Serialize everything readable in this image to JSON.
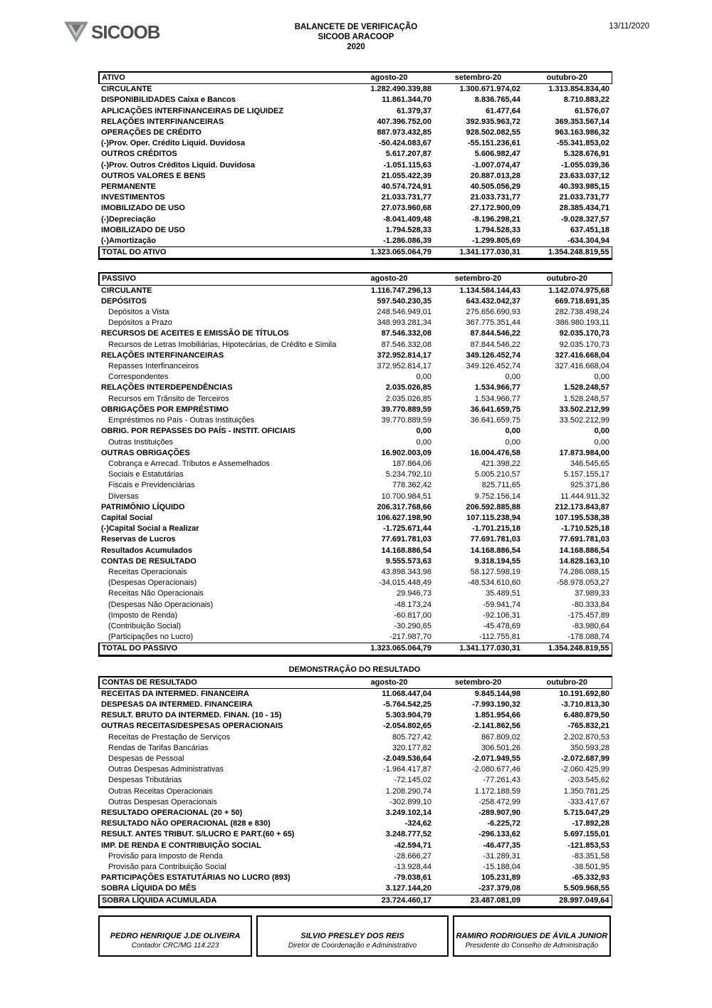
{
  "header": {
    "logo_word": "SICOOB",
    "title_lines": [
      "BALANCETE DE VERIFICAÇÃO",
      "SICOOB ARACOOP",
      "2020"
    ],
    "date": "13/11/2020"
  },
  "columns": [
    "agosto-20",
    "setembro-20",
    "outubro-20"
  ],
  "tables": [
    {
      "id": "ativo",
      "header_label": "ATIVO",
      "rows": [
        {
          "label": "CIRCULANTE",
          "values": [
            "1.282.490.339,88",
            "1.300.671.974,02",
            "1.313.854.834,40"
          ],
          "style": "bold"
        },
        {
          "label": "DISPONIBILIDADES Caixa e Bancos",
          "values": [
            "11.861.344,70",
            "8.836.765,44",
            "8.710.883,22"
          ],
          "style": "bold"
        },
        {
          "label": "APLICAÇÕES INTERFINANCEIRAS DE LIQUIDEZ",
          "values": [
            "61.379,37",
            "61.477,64",
            "61.576,07"
          ],
          "style": "bold"
        },
        {
          "label": "RELAÇÕES INTERFINANCEIRAS",
          "values": [
            "407.396.752,00",
            "392.935.963,72",
            "369.353.567,14"
          ],
          "style": "bold"
        },
        {
          "label": "OPERAÇÕES DE CRÉDITO",
          "values": [
            "887.973.432,85",
            "928.502.082,55",
            "963.163.986,32"
          ],
          "style": "bold"
        },
        {
          "label": "(-)Prov. Oper. Crédito Liquid. Duvidosa",
          "values": [
            "-50.424.083,67",
            "-55.151.236,61",
            "-55.341.853,02"
          ],
          "style": "bold"
        },
        {
          "label": "OUTROS CRÉDITOS",
          "values": [
            "5.617.207,87",
            "5.606.982,47",
            "5.328.676,91"
          ],
          "style": "bold"
        },
        {
          "label": "(-)Prov. Outros Créditos Liquid. Duvidosa",
          "values": [
            "-1.051.115,63",
            "-1.007.074,47",
            "-1.055.039,36"
          ],
          "style": "bold"
        },
        {
          "label": "OUTROS VALORES E BENS",
          "values": [
            "21.055.422,39",
            "20.887.013,28",
            "23.633.037,12"
          ],
          "style": "bold"
        },
        {
          "label": "PERMANENTE",
          "values": [
            "40.574.724,91",
            "40.505.056,29",
            "40.393.985,15"
          ],
          "style": "bold"
        },
        {
          "label": "INVESTIMENTOS",
          "values": [
            "21.033.731,77",
            "21.033.731,77",
            "21.033.731,77"
          ],
          "style": "bold"
        },
        {
          "label": "IMOBILIZADO DE USO",
          "values": [
            "27.073.960,68",
            "27.172.900,09",
            "28.385.434,71"
          ],
          "style": "bold"
        },
        {
          "label": "(-)Depreciação",
          "values": [
            "-8.041.409,48",
            "-8.196.298,21",
            "-9.028.327,57"
          ],
          "style": "bold"
        },
        {
          "label": "IMOBILIZADO DE USO",
          "values": [
            "1.794.528,33",
            "1.794.528,33",
            "637.451,18"
          ],
          "style": "bold"
        },
        {
          "label": "(-)Amortização",
          "values": [
            "-1.286.086,39",
            "-1.299.805,69",
            "-634.304,94"
          ],
          "style": "bold"
        }
      ],
      "total": {
        "label": "TOTAL DO ATIVO",
        "values": [
          "1.323.065.064,79",
          "1.341.177.030,31",
          "1.354.248.819,55"
        ]
      }
    },
    {
      "id": "passivo",
      "header_label": "PASSIVO",
      "rows": [
        {
          "label": "CIRCULANTE",
          "values": [
            "1.116.747.296,13",
            "1.134.584.144,43",
            "1.142.074.975,68"
          ],
          "style": "bold"
        },
        {
          "label": "DEPÓSITOS",
          "values": [
            "597.540.230,35",
            "643.432.042,37",
            "669.718.691,35"
          ],
          "style": "bold"
        },
        {
          "label": "Depósitos a Vista",
          "values": [
            "248.546.949,01",
            "275.656.690,93",
            "282.738.498,24"
          ],
          "style": "sub"
        },
        {
          "label": "Depósitos a Prazo",
          "values": [
            "348.993.281,34",
            "367.775.351,44",
            "386.980.193,11"
          ],
          "style": "sub"
        },
        {
          "label": "RECURSOS DE ACEITES E EMISSÃO DE TÍTULOS",
          "values": [
            "87.546.332,08",
            "87.844.546,22",
            "92.035.170,73"
          ],
          "style": "bold"
        },
        {
          "label": "Recursos de Letras Imobiliárias, Hipotecárias, de Crédito e Simila",
          "values": [
            "87.546.332,08",
            "87.844.546,22",
            "92.035.170,73"
          ],
          "style": "sub"
        },
        {
          "label": "RELAÇÕES INTERFINANCEIRAS",
          "values": [
            "372.952.814,17",
            "349.126.452,74",
            "327.416.668,04"
          ],
          "style": "bold"
        },
        {
          "label": "Repasses Interfinanceiros",
          "values": [
            "372.952.814,17",
            "349.126.452,74",
            "327.416.668,04"
          ],
          "style": "sub"
        },
        {
          "label": "Correspondentes",
          "values": [
            "0,00",
            "0,00",
            "0,00"
          ],
          "style": "sub"
        },
        {
          "label": "RELAÇÕES INTERDEPENDÊNCIAS",
          "values": [
            "2.035.026,85",
            "1.534.966,77",
            "1.528.248,57"
          ],
          "style": "bold"
        },
        {
          "label": "Recursos em Trânsito de Terceiros",
          "values": [
            "2.035.026,85",
            "1.534.966,77",
            "1.528.248,57"
          ],
          "style": "sub"
        },
        {
          "label": "OBRIGAÇÕES POR EMPRÉSTIMO",
          "values": [
            "39.770.889,59",
            "36.641.659,75",
            "33.502.212,99"
          ],
          "style": "bold"
        },
        {
          "label": "Empréstimos no País - Outras Instituições",
          "values": [
            "39.770.889,59",
            "36.641.659,75",
            "33.502.212,99"
          ],
          "style": "sub"
        },
        {
          "label": "OBRIG. POR REPASSES DO PAÍS - INSTIT. OFICIAIS",
          "values": [
            "0,00",
            "0,00",
            "0,00"
          ],
          "style": "bold"
        },
        {
          "label": "Outras Instituições",
          "values": [
            "0,00",
            "0,00",
            "0,00"
          ],
          "style": "sub"
        },
        {
          "label": "OUTRAS OBRIGAÇÕES",
          "values": [
            "16.902.003,09",
            "16.004.476,58",
            "17.873.984,00"
          ],
          "style": "bold"
        },
        {
          "label": "Cobrança e Arrecad. Tributos e Assemelhados",
          "values": [
            "187.864,06",
            "421.398,22",
            "346.545,65"
          ],
          "style": "sub"
        },
        {
          "label": "Sociais e Estatutárias",
          "values": [
            "5.234.792,10",
            "5.005.210,57",
            "5.157.155,17"
          ],
          "style": "sub"
        },
        {
          "label": "Fiscais e Previdenciárias",
          "values": [
            "778.362,42",
            "825.711,65",
            "925.371,86"
          ],
          "style": "sub"
        },
        {
          "label": "Diversas",
          "values": [
            "10.700.984,51",
            "9.752.156,14",
            "11.444.911,32"
          ],
          "style": "sub"
        },
        {
          "label": "PATRIMÔNIO LÍQUIDO",
          "values": [
            "206.317.768,66",
            "206.592.885,88",
            "212.173.843,87"
          ],
          "style": "bold"
        },
        {
          "label": "Capital Social",
          "values": [
            "106.627.198,90",
            "107.115.238,94",
            "107.195.538,38"
          ],
          "style": "bold"
        },
        {
          "label": "(-)Capital Social a Realizar",
          "values": [
            "-1.725.671,44",
            "-1.701.215,18",
            "-1.710.525,18"
          ],
          "style": "bold"
        },
        {
          "label": "Reservas de Lucros",
          "values": [
            "77.691.781,03",
            "77.691.781,03",
            "77.691.781,03"
          ],
          "style": "bold"
        },
        {
          "label": "Resultados Acumulados",
          "values": [
            "14.168.886,54",
            "14.168.886,54",
            "14.168.886,54"
          ],
          "style": "bold"
        },
        {
          "label": "CONTAS DE RESULTADO",
          "values": [
            "9.555.573,63",
            "9.318.194,55",
            "14.828.163,10"
          ],
          "style": "bold"
        },
        {
          "label": "Receitas Operacionais",
          "values": [
            "43.898.343,98",
            "58.127.598,19",
            "74.286.088,15"
          ],
          "style": "sub"
        },
        {
          "label": "(Despesas Operacionais)",
          "values": [
            "-34.015.448,49",
            "-48.534.610,60",
            "-58.978.053,27"
          ],
          "style": "sub"
        },
        {
          "label": "Receitas Não Operacionais",
          "values": [
            "29.946,73",
            "35.489,51",
            "37.989,33"
          ],
          "style": "sub"
        },
        {
          "label": "(Despesas Não Operacionais)",
          "values": [
            "-48.173,24",
            "-59.941,74",
            "-80.333,84"
          ],
          "style": "sub"
        },
        {
          "label": "(Imposto de Renda)",
          "values": [
            "-60.817,00",
            "-92.106,31",
            "-175.457,89"
          ],
          "style": "sub"
        },
        {
          "label": "(Contribuição Social)",
          "values": [
            "-30.290,65",
            "-45.478,69",
            "-83.980,64"
          ],
          "style": "sub"
        },
        {
          "label": "(Participações no Lucro)",
          "values": [
            "-217.987,70",
            "-112.755,81",
            "-178.088,74"
          ],
          "style": "sub"
        }
      ],
      "total": {
        "label": "TOTAL DO PASSIVO",
        "values": [
          "1.323.065.064,79",
          "1.341.177.030,31",
          "1.354.248.819,55"
        ]
      }
    },
    {
      "id": "dre",
      "title": "DEMONSTRAÇÃO DO RESULTADO",
      "header_label": "CONTAS DE RESULTADO",
      "rows": [
        {
          "label": "RECEITAS DA INTERMED. FINANCEIRA",
          "values": [
            "11.068.447,04",
            "9.845.144,98",
            "10.191.692,80"
          ],
          "style": "bold"
        },
        {
          "label": "DESPESAS DA INTERMED. FINANCEIRA",
          "values": [
            "-5.764.542,25",
            "-7.993.190,32",
            "-3.710.813,30"
          ],
          "style": "bold"
        },
        {
          "label": "RESULT. BRUTO DA INTERMED. FINAN. (10 - 15)",
          "values": [
            "5.303.904,79",
            "1.851.954,66",
            "6.480.879,50"
          ],
          "style": "bold"
        },
        {
          "label": "OUTRAS RECEITAS/DESPESAS OPERACIONAIS",
          "values": [
            "-2.054.802,65",
            "-2.141.862,56",
            "-765.832,21"
          ],
          "style": "bold"
        },
        {
          "label": "Receitas de Prestação de Serviços",
          "values": [
            "805.727,42",
            "867.809,02",
            "2.202.870,53"
          ],
          "style": "sub"
        },
        {
          "label": "Rendas de Tarifas Bancárias",
          "values": [
            "320.177,82",
            "306.501,26",
            "350.593,28"
          ],
          "style": "sub"
        },
        {
          "label": "Despesas de Pessoal",
          "values": [
            "-2.049.536,64",
            "-2.071.949,55",
            "-2.072.687,99"
          ],
          "style": "subb"
        },
        {
          "label": "Outras Despesas Administrativas",
          "values": [
            "-1.964.417,87",
            "-2.080.677,46",
            "-2.060.425,99"
          ],
          "style": "sub"
        },
        {
          "label": "Despesas Tributárias",
          "values": [
            "-72.145,02",
            "-77.261,43",
            "-203.545,62"
          ],
          "style": "sub"
        },
        {
          "label": "Outras Receitas Operacionais",
          "values": [
            "1.208.290,74",
            "1.172.188,59",
            "1.350.781,25"
          ],
          "style": "sub"
        },
        {
          "label": "Outras Despesas Operacionais",
          "values": [
            "-302.899,10",
            "-258.472,99",
            "-333.417,67"
          ],
          "style": "sub"
        },
        {
          "label": "RESULTADO OPERACIONAL (20 + 50)",
          "values": [
            "3.249.102,14",
            "-289.907,90",
            "5.715.047,29"
          ],
          "style": "bold"
        },
        {
          "label": "RESULTADO NÃO OPERACIONAL (828 e 830)",
          "values": [
            "-324,62",
            "-6.225,72",
            "-17.892,28"
          ],
          "style": "bold"
        },
        {
          "label": "RESULT. ANTES TRIBUT. S/LUCRO E PART.(60 + 65)",
          "values": [
            "3.248.777,52",
            "-296.133,62",
            "5.697.155,01"
          ],
          "style": "bold"
        },
        {
          "label": "IMP. DE RENDA E CONTRIBUIÇÃO SOCIAL",
          "values": [
            "-42.594,71",
            "-46.477,35",
            "-121.853,53"
          ],
          "style": "bold"
        },
        {
          "label": "Provisão para Imposto de Renda",
          "values": [
            "-28.666,27",
            "-31.289,31",
            "-83.351,58"
          ],
          "style": "sub"
        },
        {
          "label": "Provisão para Contribuição Social",
          "values": [
            "-13.928,44",
            "-15.188,04",
            "-38.501,95"
          ],
          "style": "sub"
        },
        {
          "label": "PARTICIPAÇÕES ESTATUTÁRIAS NO LUCRO (893)",
          "values": [
            "-79.038,61",
            "105.231,89",
            "-65.332,93"
          ],
          "style": "bold"
        },
        {
          "label": "SOBRA LÍQUIDA DO MÊS",
          "values": [
            "3.127.144,20",
            "-237.379,08",
            "5.509.968,55"
          ],
          "style": "bold"
        }
      ],
      "total": {
        "label": "SOBRA LÍQUIDA ACUMULADA",
        "values": [
          "23.724.460,17",
          "23.487.081,09",
          "28.997.049,64"
        ]
      }
    }
  ],
  "signatures": [
    {
      "name": "PEDRO HENRIQUE J.DE OLIVEIRA",
      "role": "Contador CRC/MG 114.223"
    },
    {
      "name": "SILVIO PRESLEY DOS REIS",
      "role": "Diretor de Coordenação e Administrativo"
    },
    {
      "name": "RAMIRO RODRIGUES DE ÁVILA JUNIOR",
      "role": "Presidente do Conselho de Administração"
    }
  ]
}
